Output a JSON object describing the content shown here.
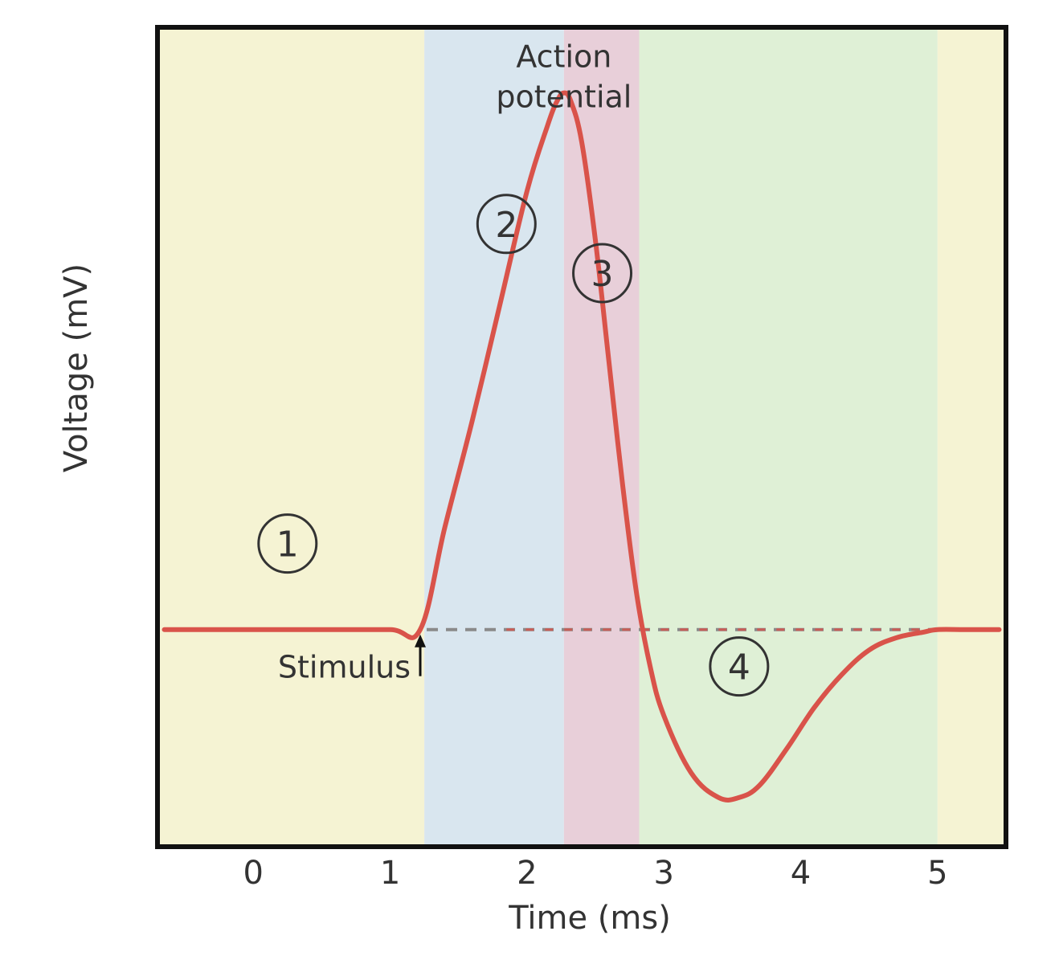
{
  "chart_data": {
    "type": "line",
    "title": "",
    "xlabel": "Time (ms)",
    "ylabel": "Voltage (mV)",
    "xlim": [
      -0.7,
      5.5
    ],
    "ylim": [
      0,
      1
    ],
    "grid": false,
    "x_ticks": [
      0,
      1,
      2,
      3,
      4,
      5
    ],
    "x_tick_labels": [
      "0",
      "1",
      "2",
      "3",
      "4",
      "5"
    ],
    "y_tick_labels": [],
    "colors": {
      "curve": "#d9534a",
      "phase_1": "#f5f3d3",
      "phase_2": "#d9e6ef",
      "phase_3": "#e8cfd9",
      "phase_4": "#dff0d6",
      "frame": "#111111"
    },
    "phases": [
      {
        "label": "1",
        "x_start": -0.7,
        "x_end": 1.25,
        "color_key": "phase_1"
      },
      {
        "label": "2",
        "x_start": 1.25,
        "x_end": 2.27,
        "color_key": "phase_2"
      },
      {
        "label": "3",
        "x_start": 2.27,
        "x_end": 2.82,
        "color_key": "phase_3"
      },
      {
        "label": "4",
        "x_start": 2.82,
        "x_end": 5.0,
        "color_key": "phase_4"
      },
      {
        "label": "",
        "x_start": 5.0,
        "x_end": 5.5,
        "color_key": "phase_1"
      }
    ],
    "phase_markers": [
      {
        "label": "1",
        "x": 0.25,
        "y": 0.37
      },
      {
        "label": "2",
        "x": 1.85,
        "y": 0.76
      },
      {
        "label": "3",
        "x": 2.55,
        "y": 0.7
      },
      {
        "label": "4",
        "x": 3.55,
        "y": 0.22
      }
    ],
    "resting_level": 0.265,
    "series": [
      {
        "x": [
          -0.65,
          0.0,
          0.5,
          1.0,
          1.22,
          1.4,
          1.6,
          1.8,
          2.0,
          2.15,
          2.22,
          2.27,
          2.32,
          2.4,
          2.5,
          2.6,
          2.7,
          2.8,
          2.9,
          3.0,
          3.2,
          3.4,
          3.55,
          3.7,
          3.9,
          4.1,
          4.3,
          4.5,
          4.7,
          4.9,
          5.0,
          5.2,
          5.45
        ],
        "y": [
          0.265,
          0.265,
          0.265,
          0.265,
          0.265,
          0.39,
          0.52,
          0.66,
          0.8,
          0.88,
          0.91,
          0.92,
          0.91,
          0.86,
          0.74,
          0.59,
          0.44,
          0.31,
          0.22,
          0.16,
          0.09,
          0.06,
          0.06,
          0.075,
          0.12,
          0.17,
          0.21,
          0.24,
          0.255,
          0.262,
          0.265,
          0.265,
          0.265
        ]
      }
    ],
    "annotations": [
      {
        "text_lines": [
          "Action",
          "potential"
        ],
        "x": 2.27,
        "y": 0.985
      },
      {
        "text": "Stimulus",
        "x": 1.22,
        "y": 0.265
      }
    ]
  }
}
